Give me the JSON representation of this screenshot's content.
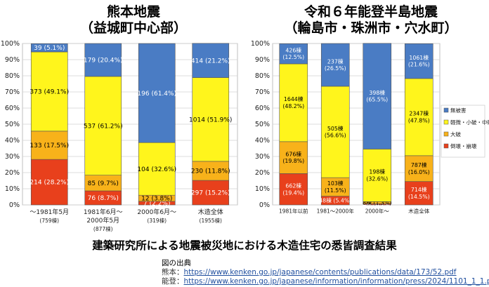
{
  "titles": {
    "left_line1": "熊本地震",
    "left_line2": "（益城町中心部）",
    "right_line1": "令和６年能登半島地震",
    "right_line2": "（輪島市・珠洲市・穴水町）"
  },
  "caption": "建築研究所による地震被災地における木造住宅の悉皆調査結果",
  "source": {
    "heading": "図の出典",
    "kumamoto_label": "熊本：",
    "kumamoto_url": "https://www.kenken.go.jp/japanese/contents/publications/data/173/52.pdf",
    "noto_label": "能登：",
    "noto_url": "https://www.kenken.go.jp/japanese/information/information/press/2024/1101_1_1.pdf"
  },
  "colors": {
    "collapse": "#e8401c",
    "major": "#f8b21a",
    "minor": "#fff51c",
    "none": "#4a7cc4"
  },
  "chart_data": [
    {
      "type": "bar",
      "stacked": true,
      "percent": true,
      "title": "熊本地震（益城町中心部）",
      "ylim": [
        0,
        100
      ],
      "yticks": [
        "0%",
        "10%",
        "20%",
        "30%",
        "40%",
        "50%",
        "60%",
        "70%",
        "80%",
        "90%",
        "100%"
      ],
      "categories": [
        "〜1981年5月",
        "1981年6月〜 2000年5月",
        "2000年6月〜",
        "木造全体"
      ],
      "category_lines": [
        [
          "〜1981年5月",
          "(759棟)"
        ],
        [
          "1981年6月〜",
          "2000年5月",
          "(877棟)"
        ],
        [
          "2000年6月〜",
          "(319棟)"
        ],
        [
          "木造全体",
          "(1955棟)"
        ]
      ],
      "series": [
        {
          "key": "collapse",
          "values": [
            28.2,
            8.7,
            2.2,
            15.2
          ],
          "labels": [
            "214 (28.2%)",
            "76 (8.7%)",
            "7 (2.2%)",
            "297 (15.2%)"
          ]
        },
        {
          "key": "major",
          "values": [
            17.5,
            9.7,
            3.8,
            11.8
          ],
          "labels": [
            "133 (17.5%)",
            "85 (9.7%)",
            "12 (3.8%)",
            "230 (11.8%)"
          ]
        },
        {
          "key": "minor",
          "values": [
            49.1,
            61.2,
            32.6,
            51.9
          ],
          "labels": [
            "373 (49.1%)",
            "537 (61.2%)",
            "104 (32.6%)",
            "1014 (51.9%)"
          ]
        },
        {
          "key": "none",
          "values": [
            5.1,
            20.4,
            61.4,
            21.2
          ],
          "labels": [
            "39 (5.1%)",
            "179 (20.4%)",
            "196 (61.4%)",
            "414 (21.2%)"
          ]
        }
      ]
    },
    {
      "type": "bar",
      "stacked": true,
      "percent": true,
      "title": "令和６年能登半島地震（輪島市・珠洲市・穴水町）",
      "ylim": [
        0,
        100
      ],
      "yticks": [
        "0%",
        "10%",
        "20%",
        "30%",
        "40%",
        "50%",
        "60%",
        "70%",
        "80%",
        "90%",
        "100%"
      ],
      "categories": [
        "1981年以前",
        "1981〜2000年",
        "2000年〜",
        "木造全体"
      ],
      "category_lines": [
        [
          "1981年以前"
        ],
        [
          "1981〜2000年"
        ],
        [
          "2000年〜"
        ],
        [
          "木造全体"
        ]
      ],
      "legend": {
        "placement": "right",
        "entries": [
          {
            "key": "none",
            "label": "無被害"
          },
          {
            "key": "minor",
            "label": "軽微・小破・中破"
          },
          {
            "key": "major",
            "label": "大破"
          },
          {
            "key": "collapse",
            "label": "倒壊・崩壊"
          }
        ]
      },
      "series": [
        {
          "key": "collapse",
          "values": [
            19.4,
            5.4,
            0.7,
            14.5
          ],
          "labels": [
            "662棟\n(19.4%)",
            "48棟 (5.4%)",
            "4棟 (0.7%)",
            "714棟\n(14.5%)"
          ]
        },
        {
          "key": "major",
          "values": [
            19.8,
            11.5,
            1.3,
            16.0
          ],
          "labels": [
            "676棟\n(19.8%)",
            "103棟\n(11.5%)",
            "8棟 (1.3%)",
            "787棟\n(16.0%)"
          ]
        },
        {
          "key": "minor",
          "values": [
            48.2,
            56.6,
            32.6,
            47.8
          ],
          "labels": [
            "1644棟\n(48.2%)",
            "505棟\n(56.6%)",
            "198棟\n(32.6%)",
            "2347棟\n(47.8%)"
          ]
        },
        {
          "key": "none",
          "values": [
            12.5,
            26.5,
            65.5,
            21.6
          ],
          "labels": [
            "426棟\n(12.5%)",
            "237棟\n(26.5%)",
            "398棟\n(65.5%)",
            "1061棟\n(21.6%)"
          ]
        }
      ]
    }
  ]
}
